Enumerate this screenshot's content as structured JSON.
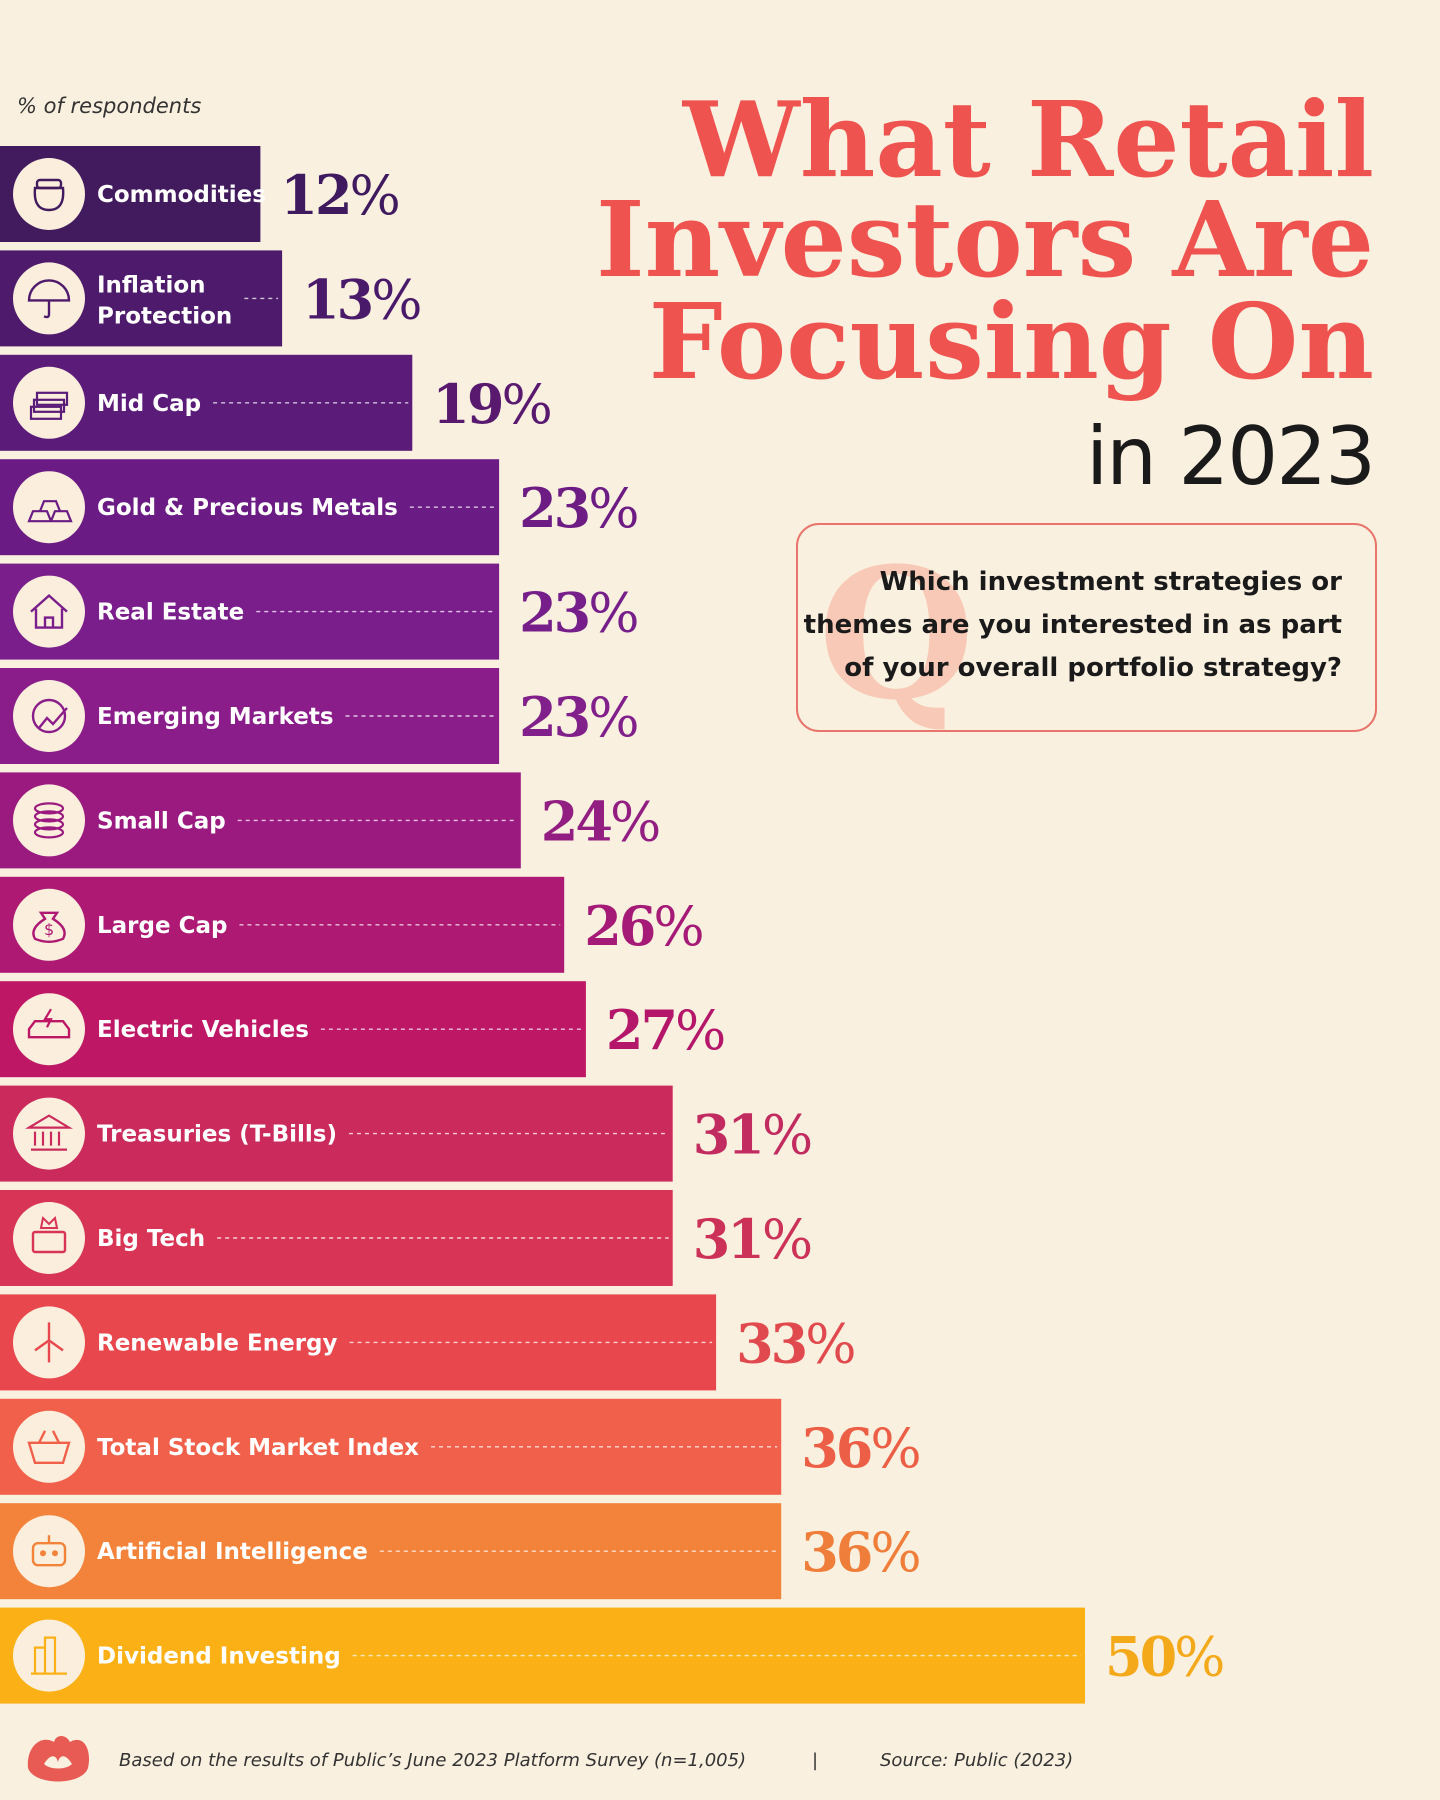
{
  "colors": {
    "background": "#FAF0DF",
    "title": "#EF5350",
    "bar_gradient": [
      "#3F1A5E",
      "#5B1B78",
      "#7D1E8C",
      "#A3197A",
      "#C5155F",
      "#E03A53",
      "#F2624A",
      "#F5872F",
      "#FBB116"
    ],
    "icon_bg": "#FBEEDC",
    "logo": "#E85B54"
  },
  "title_lines": [
    "What Retail",
    "Investors Are",
    "Focusing On"
  ],
  "subtitle": "in 2023",
  "question": {
    "letter": "Q",
    "lines": [
      "Which investment strategies or",
      "themes are you interested in as part",
      "of your overall portfolio strategy?"
    ]
  },
  "footer": {
    "note": "Based on the results of Public’s June 2023 Platform Survey (n=1,005)",
    "separator": "|",
    "source": "Source: Public (2023)"
  },
  "chart_data": {
    "type": "bar",
    "orientation": "horizontal",
    "ylabel": "% of respondents",
    "unit": "%",
    "xlim": [
      0,
      100
    ],
    "categories": [
      "Commodities",
      "Inflation Protection",
      "Mid Cap",
      "Gold & Precious Metals",
      "Real Estate",
      "Emerging Markets",
      "Small Cap",
      "Large Cap",
      "Electric Vehicles",
      "Treasuries (T-Bills)",
      "Big Tech",
      "Renewable Energy",
      "Total Stock Market Index",
      "Artificial Intelligence",
      "Dividend Investing"
    ],
    "label_lines": [
      [
        "Commodities"
      ],
      [
        "Inflation",
        "Protection"
      ],
      [
        "Mid Cap"
      ],
      [
        "Gold & Precious Metals"
      ],
      [
        "Real Estate"
      ],
      [
        "Emerging Markets"
      ],
      [
        "Small Cap"
      ],
      [
        "Large Cap"
      ],
      [
        "Electric Vehicles"
      ],
      [
        "Treasuries (T-Bills)"
      ],
      [
        "Big Tech"
      ],
      [
        "Renewable Energy"
      ],
      [
        "Total Stock Market Index"
      ],
      [
        "Artificial Intelligence"
      ],
      [
        "Dividend Investing"
      ]
    ],
    "values": [
      12,
      13,
      19,
      23,
      23,
      23,
      24,
      26,
      27,
      31,
      31,
      33,
      36,
      36,
      50
    ],
    "icons": [
      "commodity-sack-icon",
      "umbrella-percent-icon",
      "money-stack-icon",
      "gold-bars-icon",
      "house-icon",
      "globe-growth-icon",
      "coin-stack-icon",
      "money-bag-icon",
      "electric-car-icon",
      "bank-building-icon",
      "laptop-crown-icon",
      "wind-turbine-icon",
      "shopping-basket-dollar-icon",
      "robot-head-icon",
      "buildings-percent-icon"
    ],
    "bar_colors": [
      "#421B5F",
      "#4E1A6C",
      "#5B1B78",
      "#6B1C84",
      "#7A1E8B",
      "#8A1D8A",
      "#9B1A80",
      "#AD1973",
      "#BE1765",
      "#CB2A5C",
      "#D83455",
      "#E8474E",
      "#F0604A",
      "#F3823A",
      "#FBB116"
    ],
    "value_colors": [
      "#3F1A5E",
      "#4A1A6A",
      "#58196F",
      "#6D1C84",
      "#761E89",
      "#81208A",
      "#931E82",
      "#A51977",
      "#B4176A",
      "#C22B60",
      "#CC3258",
      "#E04A4E",
      "#EC5E45",
      "#EF7E3A",
      "#F3A91A"
    ],
    "grid": false,
    "legend": "none"
  }
}
